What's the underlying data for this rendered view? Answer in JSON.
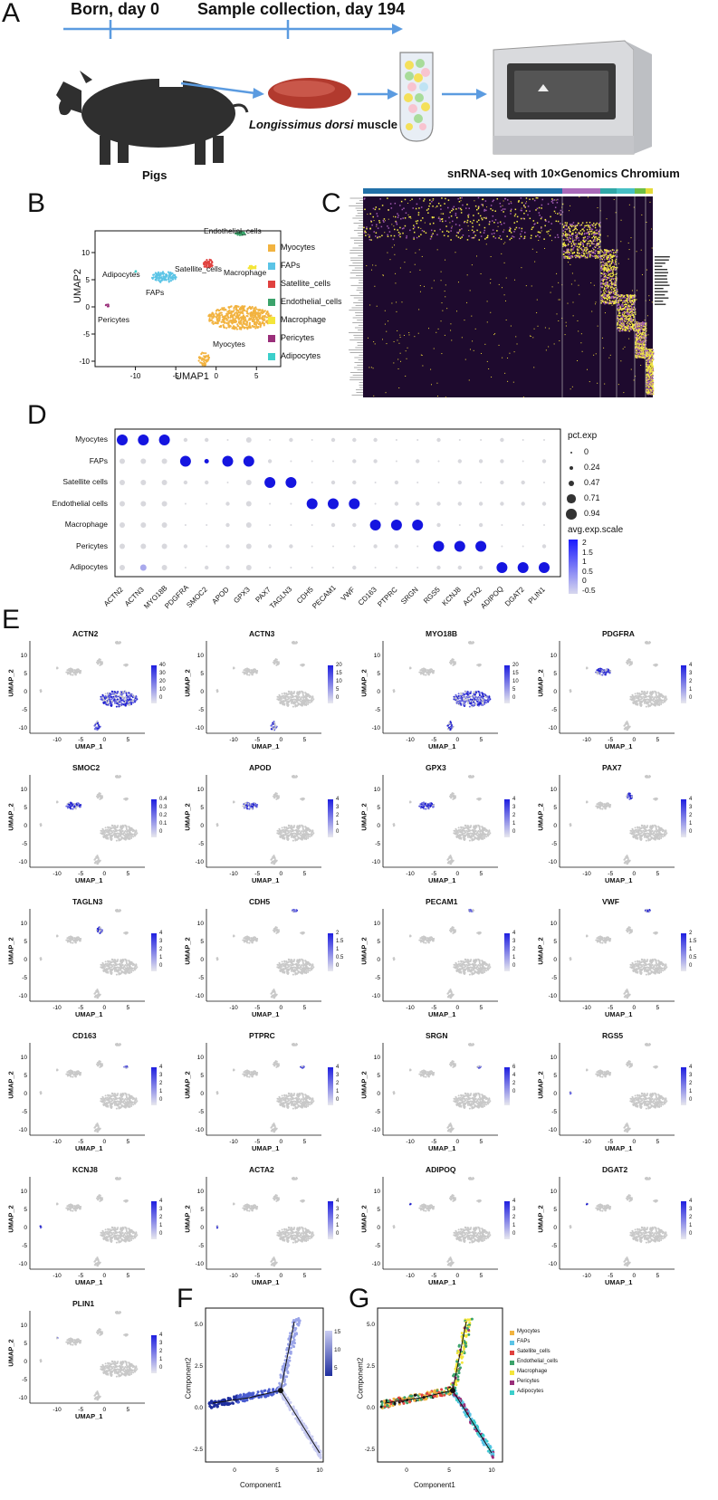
{
  "panels": {
    "A": "A",
    "B": "B",
    "C": "C",
    "D": "D",
    "E": "E",
    "F": "F",
    "G": "G"
  },
  "panelA": {
    "born": "Born, day 0",
    "sample": "Sample collection, day 194",
    "pigs": "Pigs",
    "muscle_italic": "Longissimus dorsi",
    "muscle_rest": " muscle",
    "seq": "snRNA-seq with 10×Genomics Chromium"
  },
  "panelB": {
    "xlabel": "UMAP1",
    "ylabel": "UMAP2",
    "xticks": [
      "-10",
      "-5",
      "0",
      "5"
    ],
    "yticks": [
      "10",
      "5",
      "0",
      "-5",
      "-10"
    ],
    "cluster_labels": [
      "Endothelial_cells",
      "Adipocytes",
      "Satellite_cells",
      "Macrophage",
      "FAPs",
      "Pericytes",
      "Myocytes"
    ],
    "legend": [
      {
        "name": "Myocytes",
        "color": "#F2B340"
      },
      {
        "name": "FAPs",
        "color": "#5BC4E6"
      },
      {
        "name": "Satellite_cells",
        "color": "#E0413F"
      },
      {
        "name": "Endothelial_cells",
        "color": "#3BA36B"
      },
      {
        "name": "Macrophage",
        "color": "#F4E53A"
      },
      {
        "name": "Pericytes",
        "color": "#9A2F7A"
      },
      {
        "name": "Adipocytes",
        "color": "#3CCFCB"
      }
    ]
  },
  "chart_data": [
    {
      "type": "scatter",
      "panel": "D",
      "rows": [
        "Myocytes",
        "FAPs",
        "Satellite cells",
        "Endothelial cells",
        "Macrophage",
        "Pericytes",
        "Adipocytes"
      ],
      "genes": [
        "ACTN2",
        "ACTN3",
        "MYO18B",
        "PDGFRA",
        "SMOC2",
        "APOD",
        "GPX3",
        "PAX7",
        "TAGLN3",
        "CDH5",
        "PECAM1",
        "VWF",
        "CD163",
        "PTPRC",
        "SRGN",
        "RGS5",
        "KCNJ8",
        "ACTA2",
        "ADIPOQ",
        "DGAT2",
        "PLIN1"
      ],
      "pct_legend_title": "pct.exp",
      "pct_legend": [
        "0",
        "0.24",
        "0.47",
        "0.71",
        "0.94"
      ],
      "avg_legend_title": "avg.exp.scale",
      "avg_legend": [
        "2",
        "1.5",
        "1",
        "0.5",
        "0",
        "-0.5"
      ],
      "markers": [
        {
          "row": "Myocytes",
          "genes": [
            "ACTN2",
            "ACTN3",
            "MYO18B"
          ]
        },
        {
          "row": "FAPs",
          "genes": [
            "PDGFRA",
            "SMOC2",
            "APOD",
            "GPX3"
          ]
        },
        {
          "row": "Satellite cells",
          "genes": [
            "PAX7",
            "TAGLN3"
          ]
        },
        {
          "row": "Endothelial cells",
          "genes": [
            "CDH5",
            "PECAM1",
            "VWF"
          ]
        },
        {
          "row": "Macrophage",
          "genes": [
            "CD163",
            "PTPRC",
            "SRGN"
          ]
        },
        {
          "row": "Pericytes",
          "genes": [
            "RGS5",
            "KCNJ8",
            "ACTA2"
          ]
        },
        {
          "row": "Adipocytes",
          "genes": [
            "ADIPOQ",
            "DGAT2",
            "PLIN1"
          ]
        }
      ]
    }
  ],
  "panelE": {
    "xlabel": "UMAP_1",
    "ylabel": "UMAP_2",
    "xticks": [
      "-10",
      "-5",
      "0",
      "5"
    ],
    "yticks": [
      "10",
      "5",
      "0",
      "-5",
      "-10"
    ],
    "genes": [
      {
        "name": "ACTN2",
        "scale": [
          "40",
          "30",
          "20",
          "10",
          "0"
        ]
      },
      {
        "name": "ACTN3",
        "scale": [
          "20",
          "15",
          "10",
          "5",
          "0"
        ]
      },
      {
        "name": "MYO18B",
        "scale": [
          "20",
          "15",
          "10",
          "5",
          "0"
        ]
      },
      {
        "name": "PDGFRA",
        "scale": [
          "4",
          "3",
          "2",
          "1",
          "0"
        ]
      },
      {
        "name": "SMOC2",
        "scale": [
          "0.4",
          "0.3",
          "0.2",
          "0.1",
          "0"
        ]
      },
      {
        "name": "APOD",
        "scale": [
          "4",
          "3",
          "2",
          "1",
          "0"
        ]
      },
      {
        "name": "GPX3",
        "scale": [
          "4",
          "3",
          "2",
          "1",
          "0"
        ]
      },
      {
        "name": "PAX7",
        "scale": [
          "4",
          "3",
          "2",
          "1",
          "0"
        ]
      },
      {
        "name": "TAGLN3",
        "scale": [
          "4",
          "3",
          "2",
          "1",
          "0"
        ]
      },
      {
        "name": "CDH5",
        "scale": [
          "2",
          "1.5",
          "1",
          "0.5",
          "0"
        ]
      },
      {
        "name": "PECAM1",
        "scale": [
          "4",
          "3",
          "2",
          "1",
          "0"
        ]
      },
      {
        "name": "VWF",
        "scale": [
          "2",
          "1.5",
          "1",
          "0.5",
          "0"
        ]
      },
      {
        "name": "CD163",
        "scale": [
          "4",
          "3",
          "2",
          "1",
          "0"
        ]
      },
      {
        "name": "PTPRC",
        "scale": [
          "4",
          "3",
          "2",
          "1",
          "0"
        ]
      },
      {
        "name": "SRGN",
        "scale": [
          "6",
          "4",
          "2",
          "0",
          ""
        ]
      },
      {
        "name": "RGS5",
        "scale": [
          "4",
          "3",
          "2",
          "1",
          "0"
        ]
      },
      {
        "name": "KCNJ8",
        "scale": [
          "4",
          "3",
          "2",
          "1",
          "0"
        ]
      },
      {
        "name": "ACTA2",
        "scale": [
          "4",
          "3",
          "2",
          "1",
          "0"
        ]
      },
      {
        "name": "ADIPOQ",
        "scale": [
          "4",
          "3",
          "2",
          "1",
          "0"
        ]
      },
      {
        "name": "DGAT2",
        "scale": [
          "4",
          "3",
          "2",
          "1",
          "0"
        ]
      },
      {
        "name": "PLIN1",
        "scale": [
          "4",
          "3",
          "2",
          "1",
          "0"
        ]
      }
    ]
  },
  "panelF": {
    "xlabel": "Component1",
    "ylabel": "Component2",
    "xticks": [
      "0",
      "5",
      "10"
    ],
    "yticks": [
      "5.0",
      "2.5",
      "0.0",
      "-2.5"
    ],
    "scale": [
      "15",
      "10",
      "5"
    ]
  },
  "panelG": {
    "xlabel": "Component1",
    "ylabel": "Component2",
    "xticks": [
      "0",
      "5",
      "10"
    ],
    "yticks": [
      "5.0",
      "2.5",
      "0.0",
      "-2.5"
    ],
    "legend": [
      {
        "name": "Myocytes",
        "color": "#F2B340"
      },
      {
        "name": "FAPs",
        "color": "#5BC4E6"
      },
      {
        "name": "Satellite_cells",
        "color": "#E0413F"
      },
      {
        "name": "Endothelial_cells",
        "color": "#3BA36B"
      },
      {
        "name": "Macrophage",
        "color": "#F4E53A"
      },
      {
        "name": "Pericytes",
        "color": "#9A2F7A"
      },
      {
        "name": "Adipocytes",
        "color": "#3CCFCB"
      }
    ]
  }
}
